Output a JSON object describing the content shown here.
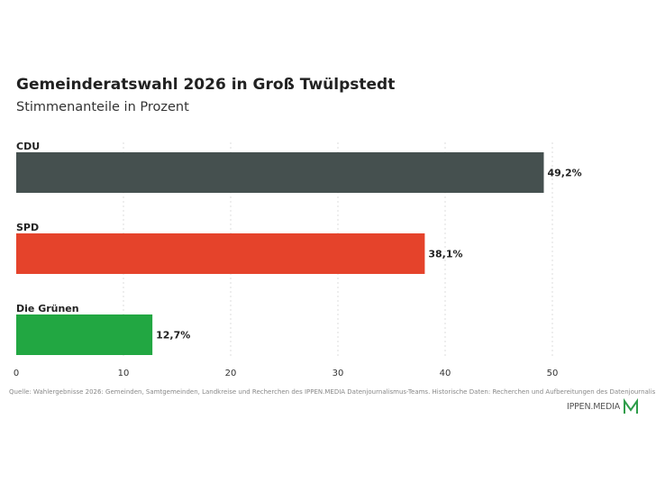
{
  "header": {
    "title": "Gemeinderatswahl 2026 in Groß Twülpstedt",
    "subtitle": "Stimmenanteile in Prozent"
  },
  "chart_data": {
    "type": "bar",
    "orientation": "horizontal",
    "categories": [
      "CDU",
      "SPD",
      "Die Grünen"
    ],
    "values": [
      49.2,
      38.1,
      12.7
    ],
    "value_labels": [
      "49,2%",
      "38,1%",
      "12,7%"
    ],
    "colors": [
      "#45504f",
      "#e5432b",
      "#22a742"
    ],
    "xlim": [
      0,
      50
    ],
    "ticks": [
      "0",
      "10",
      "20",
      "30",
      "40",
      "50"
    ],
    "grid": true,
    "legend": "none"
  },
  "footer": {
    "source": "Quelle: Wahlergebnisse 2026: Gemeinden, Samtgemeinden, Landkreise und Recherchen des IPPEN.MEDIA Datenjournalismus-Teams. Historische Daten: Recherchen und Aufbereitungen des Datenjournalismus-Teams.",
    "brand": "IPPEN.MEDIA",
    "brand_color": "#2e9d4a"
  }
}
